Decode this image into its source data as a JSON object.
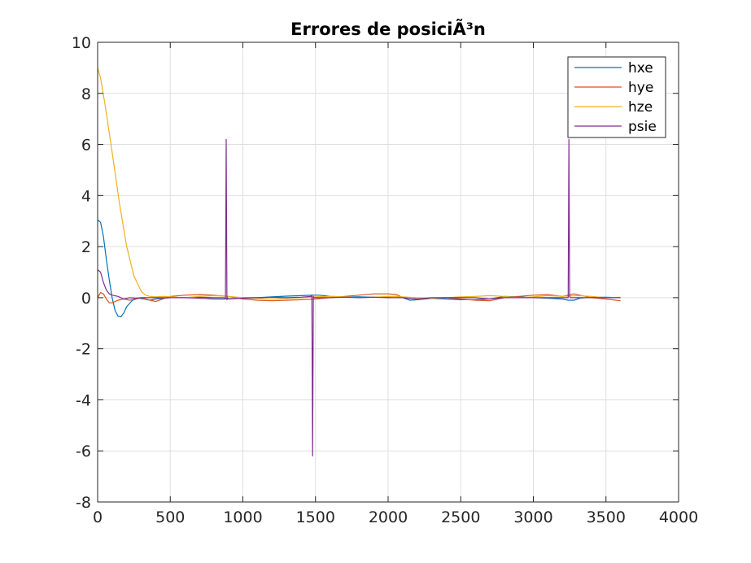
{
  "chart_data": {
    "type": "line",
    "title": "Errores de posiciÃ³n",
    "xlabel": "",
    "ylabel": "",
    "xlim": [
      0,
      4000
    ],
    "ylim": [
      -8,
      10
    ],
    "xticks": [
      0,
      500,
      1000,
      1500,
      2000,
      2500,
      3000,
      3500,
      4000
    ],
    "yticks": [
      -8,
      -6,
      -4,
      -2,
      0,
      2,
      4,
      6,
      8,
      10
    ],
    "xtick_labels": [
      "0",
      "500",
      "1000",
      "1500",
      "2000",
      "2500",
      "3000",
      "3500",
      "4000"
    ],
    "ytick_labels": [
      "-8",
      "-6",
      "-4",
      "-2",
      "0",
      "2",
      "4",
      "6",
      "8",
      "10"
    ],
    "grid": true,
    "legend_position": "top-right",
    "series": [
      {
        "name": "hxe",
        "color": "#0072BD",
        "x": [
          0,
          20,
          40,
          60,
          80,
          100,
          120,
          140,
          160,
          180,
          200,
          240,
          280,
          320,
          360,
          400,
          500,
          600,
          700,
          800,
          870,
          900,
          960,
          1000,
          1100,
          1200,
          1300,
          1400,
          1480,
          1520,
          1560,
          1600,
          1700,
          1800,
          1900,
          2000,
          2060,
          2100,
          2150,
          2200,
          2300,
          2400,
          2500,
          2600,
          2700,
          2800,
          2900,
          3000,
          3100,
          3200,
          3240,
          3280,
          3320,
          3400,
          3500,
          3600
        ],
        "y": [
          3.05,
          2.95,
          2.4,
          1.5,
          0.7,
          0.0,
          -0.5,
          -0.72,
          -0.75,
          -0.6,
          -0.35,
          -0.1,
          -0.02,
          -0.05,
          -0.1,
          -0.05,
          0.0,
          0.0,
          0.02,
          0.0,
          0.0,
          -0.05,
          -0.02,
          0.0,
          0.0,
          0.03,
          0.06,
          0.08,
          0.1,
          0.1,
          0.08,
          0.05,
          0.03,
          0.03,
          0.02,
          0.03,
          0.05,
          0.0,
          -0.1,
          -0.08,
          -0.03,
          -0.05,
          -0.08,
          -0.08,
          -0.05,
          0.05,
          0.03,
          0.0,
          -0.02,
          -0.05,
          -0.1,
          -0.1,
          -0.02,
          0.02,
          0.02,
          0.0
        ]
      },
      {
        "name": "hye",
        "color": "#D95319",
        "x": [
          0,
          20,
          40,
          60,
          80,
          100,
          140,
          180,
          220,
          260,
          300,
          360,
          400,
          500,
          600,
          700,
          800,
          900,
          1000,
          1100,
          1200,
          1300,
          1400,
          1500,
          1600,
          1700,
          1800,
          1900,
          2000,
          2060,
          2100,
          2200,
          2300,
          2400,
          2500,
          2600,
          2700,
          2800,
          2900,
          3000,
          3100,
          3200,
          3280,
          3320,
          3400,
          3500,
          3600
        ],
        "y": [
          0.0,
          0.2,
          0.15,
          -0.05,
          -0.2,
          -0.2,
          -0.1,
          -0.05,
          -0.1,
          -0.05,
          0.0,
          -0.1,
          -0.15,
          0.05,
          0.1,
          0.12,
          0.1,
          0.05,
          -0.05,
          -0.1,
          -0.12,
          -0.1,
          -0.08,
          -0.05,
          0.0,
          0.05,
          0.1,
          0.15,
          0.15,
          0.12,
          0.0,
          -0.05,
          -0.02,
          0.0,
          -0.05,
          -0.1,
          -0.12,
          0.0,
          0.05,
          0.1,
          0.12,
          0.05,
          0.15,
          0.1,
          0.0,
          -0.05,
          -0.12
        ]
      },
      {
        "name": "hze",
        "color": "#EDB120",
        "x": [
          0,
          20,
          50,
          100,
          150,
          200,
          250,
          300,
          330,
          360,
          400,
          450,
          500,
          600,
          700,
          800,
          900,
          1000,
          1100,
          1200,
          1300,
          1400,
          1500,
          1600,
          1700,
          1800,
          1900,
          2000,
          2100,
          2200,
          2300,
          2400,
          2500,
          2600,
          2700,
          2800,
          2900,
          3000,
          3100,
          3200,
          3300,
          3400,
          3500,
          3600
        ],
        "y": [
          9.0,
          8.6,
          7.6,
          5.7,
          3.7,
          2.0,
          0.85,
          0.25,
          0.1,
          0.05,
          0.03,
          0.05,
          0.03,
          0.0,
          0.05,
          0.08,
          0.05,
          0.0,
          -0.03,
          -0.05,
          -0.03,
          0.0,
          0.03,
          0.05,
          0.03,
          0.0,
          0.02,
          0.05,
          0.03,
          0.0,
          -0.02,
          0.0,
          0.03,
          0.05,
          0.08,
          0.05,
          0.0,
          0.03,
          0.08,
          0.05,
          0.08,
          0.05,
          0.0,
          0.02
        ]
      },
      {
        "name": "psie",
        "color": "#7E2F8E",
        "x": [
          0,
          20,
          40,
          60,
          80,
          100,
          140,
          180,
          220,
          260,
          300,
          400,
          500,
          600,
          700,
          800,
          880,
          885,
          890,
          895,
          900,
          1000,
          1100,
          1200,
          1300,
          1400,
          1470,
          1475,
          1480,
          1485,
          1490,
          1600,
          1700,
          1800,
          1900,
          2000,
          2100,
          2200,
          2300,
          2400,
          2500,
          2600,
          2700,
          2800,
          2900,
          3000,
          3100,
          3200,
          3240,
          3245,
          3250,
          3255,
          3260,
          3300,
          3400,
          3500,
          3600
        ],
        "y": [
          1.1,
          1.0,
          0.6,
          0.3,
          0.15,
          0.1,
          0.05,
          -0.05,
          0.0,
          -0.02,
          0.0,
          0.0,
          0.0,
          0.0,
          -0.02,
          -0.05,
          -0.05,
          6.2,
          -0.08,
          0.0,
          -0.05,
          -0.02,
          0.0,
          0.02,
          0.0,
          0.02,
          0.05,
          0.1,
          -6.2,
          0.05,
          0.0,
          0.0,
          0.02,
          0.0,
          0.02,
          0.0,
          0.0,
          -0.05,
          0.0,
          0.0,
          0.0,
          0.0,
          -0.05,
          0.0,
          0.0,
          0.0,
          0.0,
          0.0,
          0.0,
          6.2,
          0.05,
          0.0,
          0.0,
          0.0,
          0.0,
          0.0,
          0.0
        ]
      }
    ]
  }
}
